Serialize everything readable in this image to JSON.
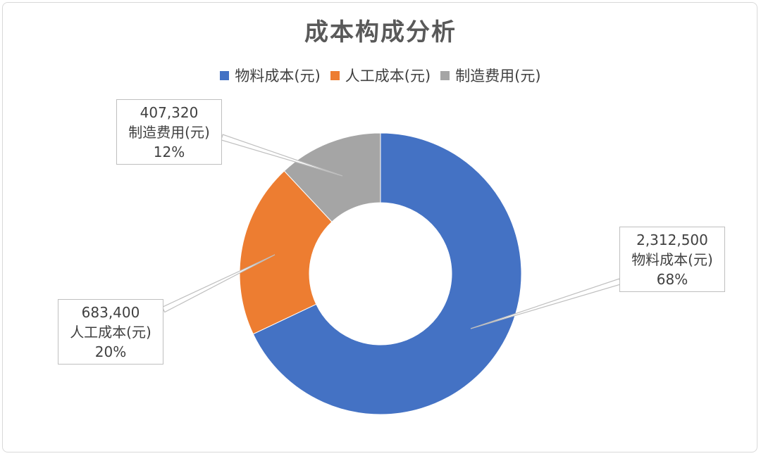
{
  "chart_data": {
    "type": "pie",
    "subtype": "donut",
    "title": "成本构成分析",
    "legend_position": "top",
    "series": [
      {
        "name": "物料成本(元)",
        "value": 2312500,
        "value_label": "2,312,500",
        "percent_label": "68%",
        "color": "#4472C4"
      },
      {
        "name": "人工成本(元)",
        "value": 683400,
        "value_label": "683,400",
        "percent_label": "20%",
        "color": "#ED7D31"
      },
      {
        "name": "制造费用(元)",
        "value": 407320,
        "value_label": "407,320",
        "percent_label": "12%",
        "color": "#A5A5A5"
      }
    ]
  }
}
